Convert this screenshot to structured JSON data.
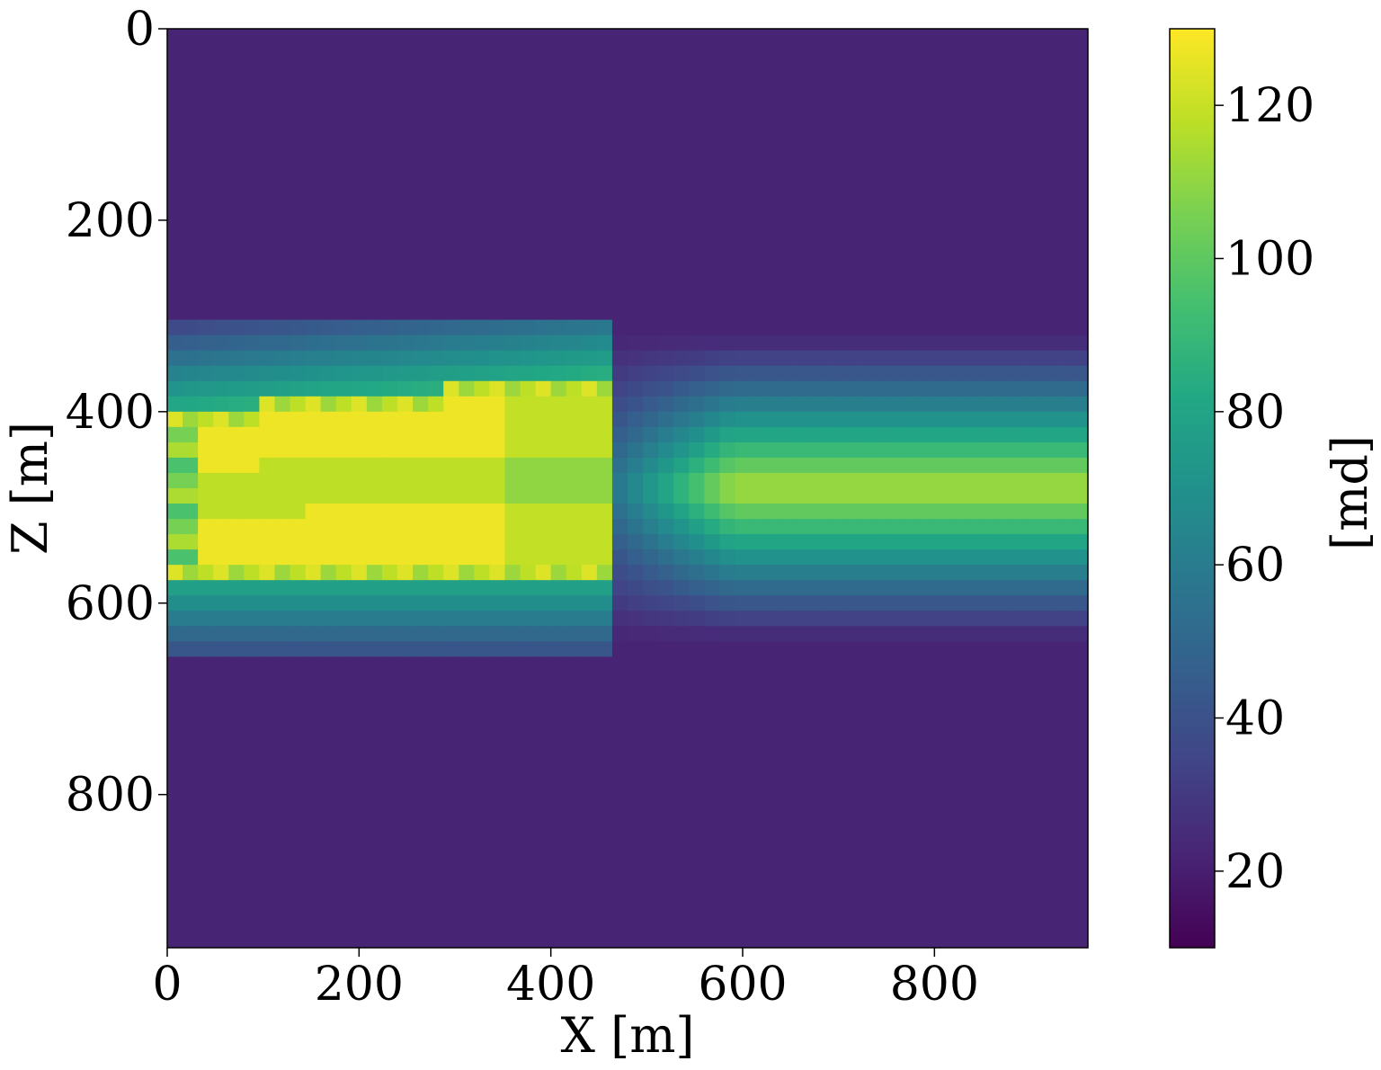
{
  "chart_data": {
    "type": "heatmap",
    "title": "",
    "xlabel": "X [m]",
    "ylabel": "Z [m]",
    "xlim": [
      0,
      960
    ],
    "ylim": [
      960,
      0
    ],
    "x_ticks": [
      0,
      200,
      400,
      600,
      800
    ],
    "y_ticks": [
      0,
      200,
      400,
      600,
      800
    ],
    "grid": false,
    "colormap": "viridis",
    "colorbar": {
      "label": "[md]",
      "range": [
        10,
        130
      ],
      "ticks": [
        20,
        40,
        60,
        80,
        100,
        120
      ]
    },
    "cell_size_m": [
      16,
      16
    ],
    "background_value": 22,
    "fault_x_m": 470,
    "left_block": {
      "outer_band_z_m": [
        300,
        660
      ],
      "high_perm_band_z_m": [
        400,
        570
      ],
      "values_inner": [
        122,
        128
      ],
      "values_edge": [
        30,
        95
      ]
    },
    "right_block": {
      "band_z_m": [
        320,
        640
      ],
      "center_z_m": 480,
      "values": [
        30,
        40,
        55,
        70,
        85,
        100,
        112,
        116
      ]
    }
  }
}
